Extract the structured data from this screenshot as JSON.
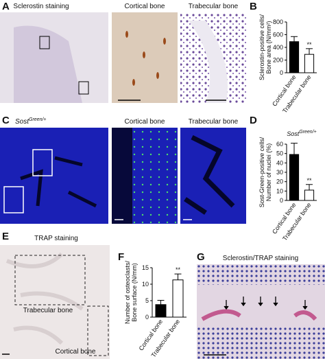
{
  "panel_labels": [
    "A",
    "B",
    "C",
    "D",
    "E",
    "F",
    "G"
  ],
  "panel_a": {
    "title": "Sclerostin staining",
    "insets": [
      "Cortical bone",
      "Trabecular bone"
    ]
  },
  "panel_c": {
    "title": {
      "base": "Sost",
      "sup": "Green/+"
    },
    "insets": [
      "Cortical bone",
      "Trabecular bone"
    ]
  },
  "panel_e": {
    "title": "TRAP staining",
    "regions": [
      "Trabecular bone",
      "Cortical bone"
    ]
  },
  "panel_g": {
    "title": "Sclerostin/TRAP staining"
  },
  "chart_data": [
    {
      "type": "bar",
      "ylabel": [
        "Sclerostin-positive cells/",
        "Bone area (N/mm²)"
      ],
      "categories": [
        "Cortical bone",
        "Trabecular bone"
      ],
      "values": [
        490,
        290
      ],
      "errors": [
        80,
        90
      ],
      "colors": [
        "#000000",
        "#ffffff"
      ],
      "ylim": [
        0,
        800
      ],
      "yticks": [
        0,
        200,
        400,
        600,
        800
      ],
      "value_annotations": [
        null,
        "**"
      ]
    },
    {
      "type": "bar",
      "title": {
        "base": "Sost",
        "sup": "Green/+"
      },
      "ylabel": [
        "Sost-Green-positive cells/",
        "Number of nuclei (%)"
      ],
      "categories": [
        "Cortical bone",
        "Trabecular bone"
      ],
      "values": [
        49,
        11
      ],
      "errors": [
        12,
        6
      ],
      "colors": [
        "#000000",
        "#ffffff"
      ],
      "ylim": [
        0,
        60
      ],
      "yticks": [
        0,
        10,
        20,
        30,
        40,
        50,
        60
      ],
      "value_annotations": [
        null,
        "**"
      ]
    },
    {
      "type": "bar",
      "ylabel": [
        "Number of osteoclasts/",
        "Bone surface (N/mm)"
      ],
      "categories": [
        "Cortical bone",
        "Trabecular bone"
      ],
      "values": [
        3.8,
        11.3
      ],
      "errors": [
        1.3,
        1.8
      ],
      "colors": [
        "#000000",
        "#ffffff"
      ],
      "ylim": [
        0,
        15
      ],
      "yticks": [
        0,
        5,
        10,
        15
      ],
      "value_annotations": [
        null,
        "**"
      ]
    }
  ]
}
